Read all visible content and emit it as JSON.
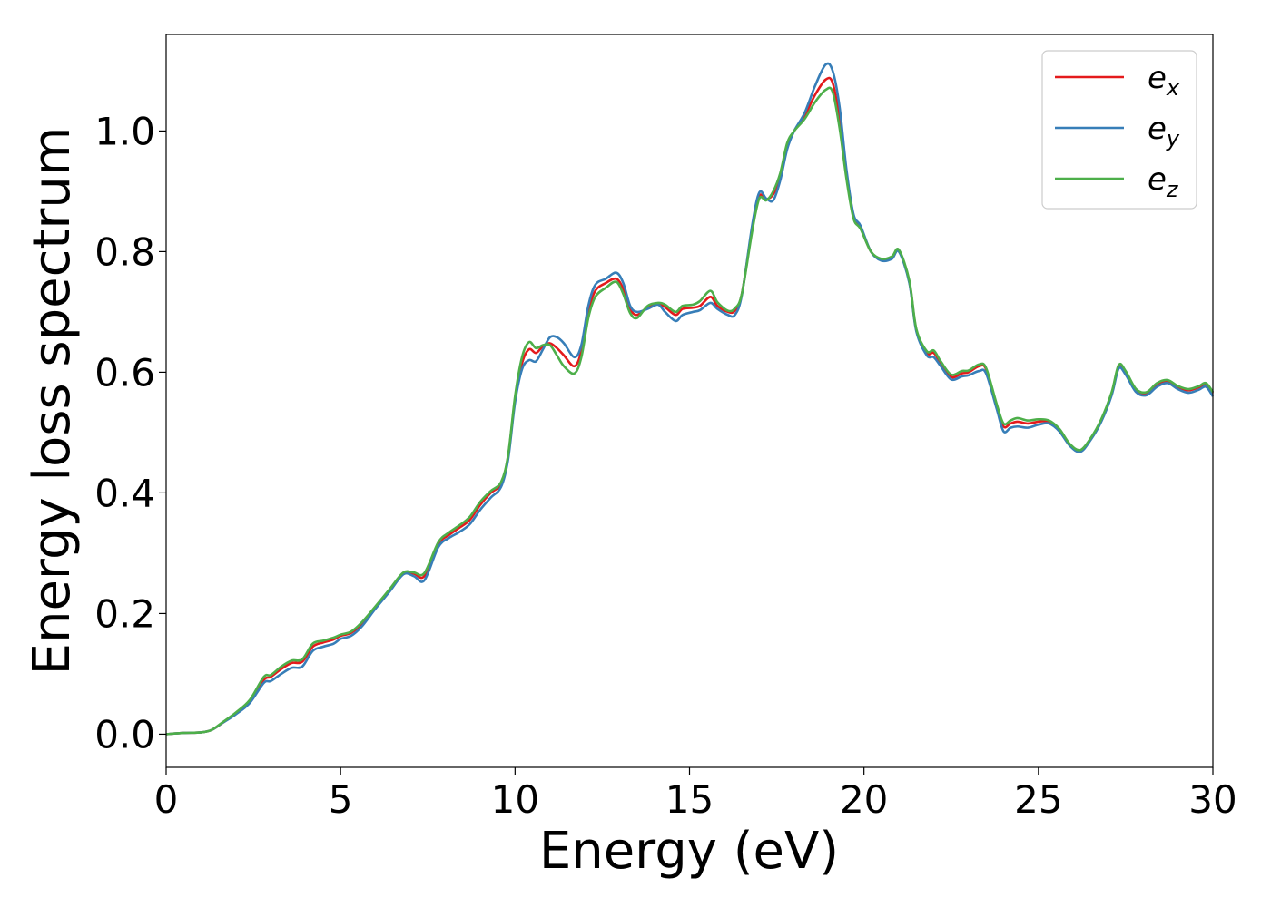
{
  "chart_data": {
    "type": "line",
    "xlabel": "Energy (eV)",
    "ylabel": "Energy loss spectrum",
    "xlim": [
      0,
      30
    ],
    "ylim": [
      -0.055,
      1.16
    ],
    "xticks": [
      0,
      5,
      10,
      15,
      20,
      25,
      30
    ],
    "yticks": [
      0.0,
      0.2,
      0.4,
      0.6,
      0.8,
      1.0
    ],
    "xtick_labels": [
      "0",
      "5",
      "10",
      "15",
      "20",
      "25",
      "30"
    ],
    "ytick_labels": [
      "0.0",
      "0.2",
      "0.4",
      "0.6",
      "0.8",
      "1.0"
    ],
    "grid": false,
    "legend_position": "top-right",
    "x": [
      0,
      0.5,
      1,
      1.3,
      1.6,
      2,
      2.4,
      2.8,
      3.0,
      3.3,
      3.6,
      3.9,
      4.2,
      4.5,
      4.8,
      5.0,
      5.3,
      5.6,
      6.0,
      6.4,
      6.8,
      7.1,
      7.4,
      7.8,
      8.1,
      8.4,
      8.7,
      9.0,
      9.3,
      9.6,
      9.8,
      10.0,
      10.2,
      10.4,
      10.6,
      10.8,
      11.0,
      11.2,
      11.4,
      11.7,
      11.9,
      12.1,
      12.3,
      12.6,
      12.9,
      13.1,
      13.3,
      13.5,
      13.8,
      14.1,
      14.3,
      14.6,
      14.8,
      15.1,
      15.3,
      15.6,
      15.8,
      16.1,
      16.3,
      16.5,
      16.8,
      17.0,
      17.2,
      17.4,
      17.6,
      17.8,
      18.0,
      18.3,
      18.6,
      18.9,
      19.1,
      19.3,
      19.5,
      19.7,
      19.9,
      20.2,
      20.5,
      20.8,
      21.0,
      21.3,
      21.5,
      21.8,
      22.0,
      22.2,
      22.5,
      22.8,
      23.0,
      23.3,
      23.5,
      23.8,
      24.0,
      24.2,
      24.4,
      24.7,
      25.0,
      25.3,
      25.6,
      25.9,
      26.2,
      26.5,
      26.8,
      27.1,
      27.3,
      27.5,
      27.8,
      28.1,
      28.4,
      28.7,
      29.0,
      29.3,
      29.6,
      29.8,
      30.0
    ],
    "series": [
      {
        "name": "e_x",
        "color": "#e41a1c",
        "values": [
          0,
          0.002,
          0.003,
          0.007,
          0.018,
          0.035,
          0.055,
          0.09,
          0.095,
          0.108,
          0.118,
          0.12,
          0.145,
          0.152,
          0.157,
          0.163,
          0.168,
          0.182,
          0.21,
          0.238,
          0.266,
          0.266,
          0.262,
          0.315,
          0.33,
          0.342,
          0.355,
          0.38,
          0.4,
          0.415,
          0.46,
          0.555,
          0.615,
          0.638,
          0.632,
          0.643,
          0.648,
          0.64,
          0.628,
          0.61,
          0.635,
          0.7,
          0.735,
          0.748,
          0.755,
          0.738,
          0.705,
          0.695,
          0.708,
          0.713,
          0.708,
          0.695,
          0.705,
          0.707,
          0.71,
          0.725,
          0.71,
          0.7,
          0.702,
          0.73,
          0.84,
          0.892,
          0.887,
          0.895,
          0.925,
          0.975,
          1.0,
          1.025,
          1.06,
          1.085,
          1.08,
          1.02,
          0.93,
          0.86,
          0.84,
          0.8,
          0.787,
          0.79,
          0.802,
          0.75,
          0.67,
          0.632,
          0.632,
          0.615,
          0.592,
          0.598,
          0.6,
          0.61,
          0.605,
          0.545,
          0.51,
          0.515,
          0.518,
          0.515,
          0.518,
          0.518,
          0.505,
          0.48,
          0.47,
          0.49,
          0.52,
          0.565,
          0.61,
          0.6,
          0.57,
          0.565,
          0.58,
          0.585,
          0.575,
          0.57,
          0.575,
          0.58,
          0.565
        ]
      },
      {
        "name": "e_y",
        "color": "#377eb8",
        "values": [
          0,
          0.002,
          0.003,
          0.007,
          0.018,
          0.033,
          0.052,
          0.085,
          0.088,
          0.1,
          0.11,
          0.112,
          0.138,
          0.145,
          0.15,
          0.158,
          0.163,
          0.178,
          0.208,
          0.236,
          0.265,
          0.262,
          0.255,
          0.31,
          0.325,
          0.335,
          0.348,
          0.372,
          0.392,
          0.41,
          0.455,
          0.55,
          0.605,
          0.62,
          0.618,
          0.638,
          0.658,
          0.658,
          0.648,
          0.625,
          0.645,
          0.71,
          0.745,
          0.755,
          0.765,
          0.748,
          0.71,
          0.7,
          0.705,
          0.712,
          0.7,
          0.685,
          0.695,
          0.7,
          0.703,
          0.715,
          0.705,
          0.695,
          0.695,
          0.728,
          0.845,
          0.898,
          0.888,
          0.885,
          0.918,
          0.97,
          1.0,
          1.03,
          1.075,
          1.11,
          1.1,
          1.04,
          0.935,
          0.862,
          0.843,
          0.8,
          0.785,
          0.788,
          0.8,
          0.748,
          0.668,
          0.628,
          0.625,
          0.61,
          0.588,
          0.593,
          0.595,
          0.602,
          0.598,
          0.54,
          0.502,
          0.508,
          0.51,
          0.508,
          0.513,
          0.515,
          0.502,
          0.478,
          0.468,
          0.488,
          0.518,
          0.562,
          0.606,
          0.596,
          0.567,
          0.562,
          0.576,
          0.582,
          0.572,
          0.566,
          0.571,
          0.576,
          0.56
        ]
      },
      {
        "name": "e_z",
        "color": "#4daf4a",
        "values": [
          0,
          0.002,
          0.003,
          0.007,
          0.019,
          0.036,
          0.057,
          0.095,
          0.098,
          0.112,
          0.122,
          0.124,
          0.15,
          0.155,
          0.16,
          0.165,
          0.17,
          0.185,
          0.212,
          0.24,
          0.268,
          0.268,
          0.267,
          0.318,
          0.334,
          0.346,
          0.36,
          0.385,
          0.403,
          0.418,
          0.462,
          0.56,
          0.625,
          0.65,
          0.64,
          0.645,
          0.645,
          0.628,
          0.61,
          0.598,
          0.625,
          0.69,
          0.725,
          0.74,
          0.75,
          0.73,
          0.698,
          0.69,
          0.71,
          0.715,
          0.712,
          0.7,
          0.71,
          0.712,
          0.718,
          0.735,
          0.716,
          0.702,
          0.706,
          0.73,
          0.835,
          0.888,
          0.885,
          0.9,
          0.93,
          0.98,
          1.0,
          1.02,
          1.048,
          1.068,
          1.065,
          1.005,
          0.92,
          0.855,
          0.838,
          0.8,
          0.788,
          0.792,
          0.803,
          0.752,
          0.672,
          0.635,
          0.636,
          0.618,
          0.596,
          0.602,
          0.603,
          0.613,
          0.607,
          0.548,
          0.515,
          0.52,
          0.524,
          0.52,
          0.522,
          0.52,
          0.506,
          0.481,
          0.471,
          0.491,
          0.522,
          0.567,
          0.612,
          0.602,
          0.572,
          0.567,
          0.582,
          0.587,
          0.577,
          0.572,
          0.577,
          0.582,
          0.567
        ]
      }
    ],
    "legend": [
      {
        "base": "e",
        "sub": "x"
      },
      {
        "base": "e",
        "sub": "y"
      },
      {
        "base": "e",
        "sub": "z"
      }
    ]
  }
}
